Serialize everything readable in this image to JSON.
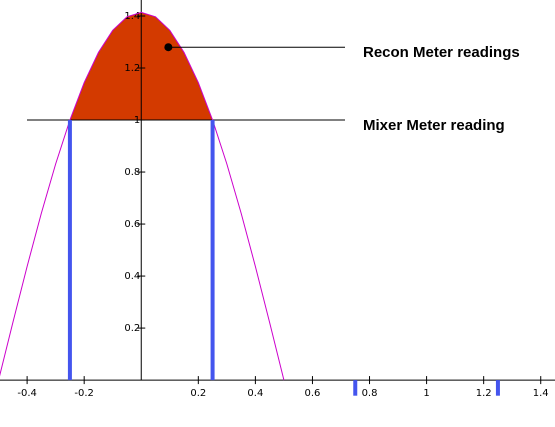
{
  "chart_data": {
    "type": "line",
    "x": [
      -0.5,
      -0.45,
      -0.4,
      -0.35,
      -0.3,
      -0.25,
      -0.2,
      -0.15,
      -0.1,
      -0.05,
      0,
      0.05,
      0.1,
      0.15,
      0.2,
      0.25,
      0.3,
      0.35,
      0.4,
      0.45,
      0.5
    ],
    "series": [
      {
        "color": "#cc00cc",
        "values": [
          0,
          0.221,
          0.437,
          0.642,
          0.831,
          1.0,
          1.144,
          1.26,
          1.345,
          1.397,
          1.414,
          1.397,
          1.345,
          1.26,
          1.144,
          1.0,
          0.831,
          0.642,
          0.437,
          0.221,
          0
        ]
      }
    ],
    "fill_color": "#d33a00",
    "threshold": 1,
    "stems": {
      "color": "#4455ee",
      "x": [
        -0.25,
        0.25,
        0.75,
        1.25
      ],
      "values": [
        1,
        1,
        -0.06,
        -0.06
      ]
    },
    "marker": {
      "x": 0.095,
      "y": 1.28
    },
    "annotations": [
      "Recon Meter readings",
      "Mixer Meter reading"
    ],
    "xlim": [
      -0.495,
      1.45
    ],
    "ylim": [
      -0.165,
      1.45
    ],
    "xticks": [
      -0.4,
      -0.2,
      0.2,
      0.4,
      0.6,
      0.8,
      1,
      1.2,
      1.4
    ],
    "yticks": [
      0.2,
      0.4,
      0.6,
      0.8,
      1,
      1.2,
      1.4
    ]
  }
}
